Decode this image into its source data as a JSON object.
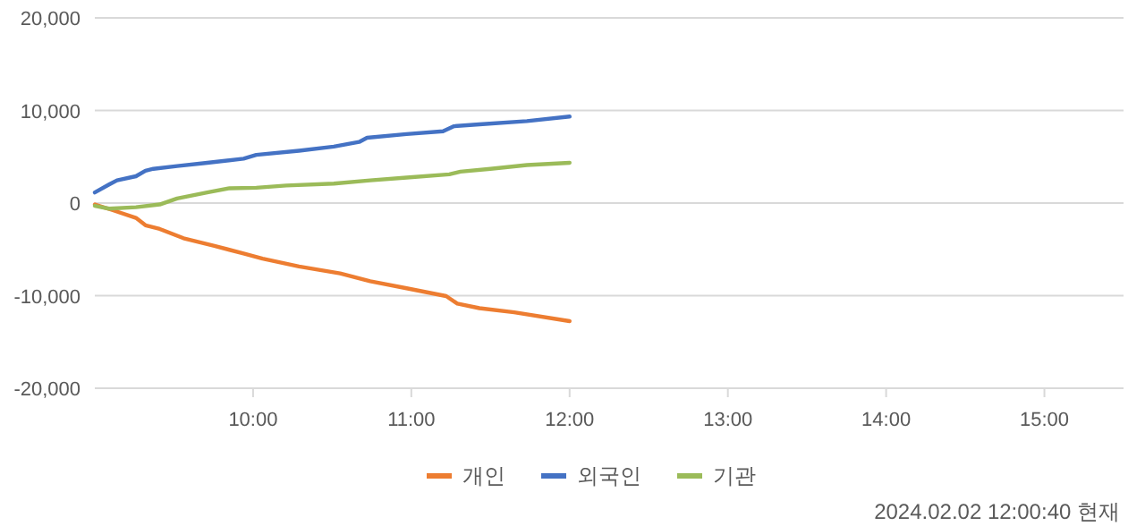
{
  "chart_data": {
    "type": "line",
    "grid": "y",
    "legend": "bottom",
    "line_style": "solid",
    "marker": "none",
    "xlim": [
      9,
      15.5
    ],
    "xticks": [
      {
        "value": 10,
        "label": "10:00"
      },
      {
        "value": 11,
        "label": "11:00"
      },
      {
        "value": 12,
        "label": "12:00"
      },
      {
        "value": 13,
        "label": "13:00"
      },
      {
        "value": 14,
        "label": "14:00"
      },
      {
        "value": 15,
        "label": "15:00"
      }
    ],
    "ylim": [
      -20000,
      20000
    ],
    "yticks": [
      {
        "value": -20000,
        "label": "-20,000"
      },
      {
        "value": -10000,
        "label": "-10,000"
      },
      0,
      {
        "value": 10000,
        "label": "10,000"
      },
      {
        "value": 20000,
        "label": "20,000"
      }
    ],
    "series": [
      {
        "name": "개인",
        "color": "#ed7d31",
        "x": [
          9.0,
          9.11,
          9.26,
          9.32,
          9.41,
          9.56,
          9.75,
          9.94,
          10.06,
          10.29,
          10.55,
          10.74,
          10.97,
          11.22,
          11.29,
          11.43,
          11.65,
          12.0
        ],
        "values": [
          -150,
          -750,
          -1600,
          -2400,
          -2800,
          -3800,
          -4600,
          -5450,
          -6000,
          -6850,
          -7600,
          -8450,
          -9200,
          -10050,
          -10850,
          -11350,
          -11800,
          -12750
        ]
      },
      {
        "name": "외국인",
        "color": "#4472c4",
        "x": [
          9.0,
          9.09,
          9.14,
          9.26,
          9.32,
          9.37,
          9.52,
          9.71,
          9.94,
          10.02,
          10.29,
          10.51,
          10.67,
          10.72,
          10.97,
          11.2,
          11.27,
          11.43,
          11.73,
          12.0
        ],
        "values": [
          1150,
          2000,
          2450,
          2900,
          3500,
          3700,
          4000,
          4350,
          4800,
          5200,
          5650,
          6100,
          6600,
          7050,
          7450,
          7750,
          8300,
          8500,
          8850,
          9350
        ]
      },
      {
        "name": "기관",
        "color": "#9bbb59",
        "x": [
          9.0,
          9.09,
          9.26,
          9.41,
          9.52,
          9.71,
          9.85,
          10.02,
          10.21,
          10.51,
          10.74,
          10.97,
          11.24,
          11.31,
          11.5,
          11.73,
          12.0
        ],
        "values": [
          -300,
          -600,
          -450,
          -150,
          500,
          1150,
          1600,
          1650,
          1900,
          2100,
          2450,
          2750,
          3100,
          3400,
          3700,
          4100,
          4350
        ]
      }
    ],
    "annotations": [
      "2024.02.02 12:00:40 현재"
    ]
  }
}
